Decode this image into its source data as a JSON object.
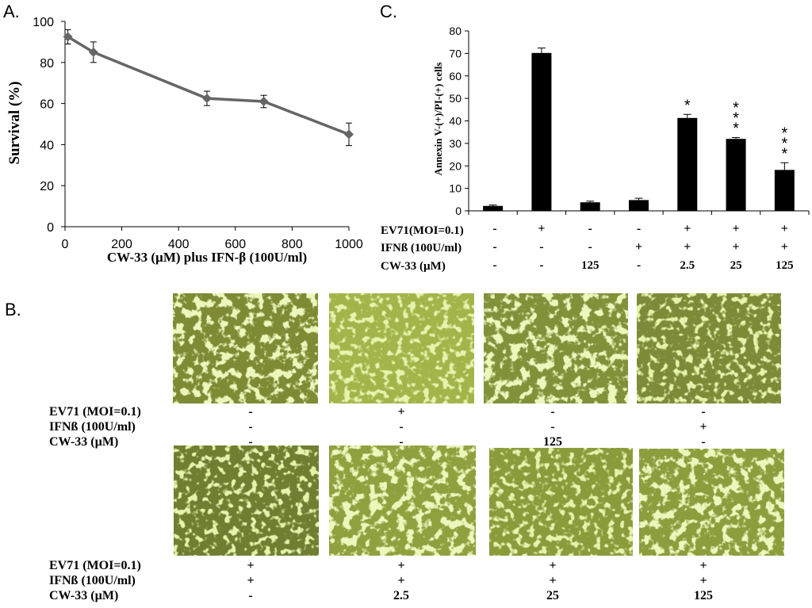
{
  "panels": {
    "a": {
      "letter": "A."
    },
    "b": {
      "letter": "B."
    },
    "c": {
      "letter": "C."
    }
  },
  "chart_data": [
    {
      "id": "panel-a",
      "type": "line",
      "xlabel": "CW-33 (µM) plus IFN-β (100U/ml)",
      "ylabel": "Survival (%)",
      "xlim": [
        0,
        1000
      ],
      "ylim": [
        0,
        100
      ],
      "xticks": [
        0,
        200,
        400,
        600,
        800,
        1000
      ],
      "yticks": [
        0,
        20,
        40,
        60,
        80,
        100
      ],
      "grid": false,
      "line_color": "#666666",
      "series": [
        {
          "x": [
            10,
            100,
            500,
            700,
            1000
          ],
          "values": [
            92.5,
            85,
            62.5,
            61,
            45
          ],
          "error": [
            3.5,
            5,
            3.5,
            3,
            5.5
          ]
        }
      ]
    },
    {
      "id": "panel-c",
      "type": "bar",
      "ylabel": "Annexin V-(+)/PI-(+) cells",
      "ylim": [
        0,
        80
      ],
      "yticks": [
        0,
        10,
        20,
        30,
        40,
        50,
        60,
        70,
        80
      ],
      "grid": false,
      "bar_color": "#000000",
      "values": [
        2.2,
        70.2,
        3.8,
        4.8,
        41.3,
        32,
        18.2
      ],
      "error": [
        0.4,
        2.2,
        0.5,
        0.8,
        1.6,
        0.6,
        3.2
      ],
      "significance": [
        "",
        "",
        "",
        "",
        "*",
        "***",
        "***"
      ],
      "condition_labels": [
        "EV71(MOI=0.1)",
        "IFNß (100U/ml)",
        "CW-33 (µM)"
      ],
      "conditions": [
        [
          "-",
          "+",
          "-",
          "-",
          "+",
          "+",
          "+"
        ],
        [
          "-",
          "-",
          "-",
          "+",
          "+",
          "+",
          "+"
        ],
        [
          "-",
          "-",
          "125",
          "-",
          "2.5",
          "25",
          "125"
        ]
      ]
    }
  ],
  "micrographs": {
    "condition_labels": [
      "EV71 (MOI=0.1)",
      "IFNß (100U/ml)",
      "CW-33 (µM)"
    ],
    "rows": [
      {
        "conditions": [
          [
            "-",
            "+",
            "-",
            "-"
          ],
          [
            "-",
            "-",
            "-",
            "+"
          ],
          [
            "-",
            "-",
            "125",
            "-"
          ]
        ]
      },
      {
        "conditions": [
          [
            "+",
            "+",
            "+",
            "+"
          ],
          [
            "+",
            "+",
            "+",
            "+"
          ],
          [
            "-",
            "2.5",
            "25",
            "125"
          ]
        ]
      }
    ]
  }
}
